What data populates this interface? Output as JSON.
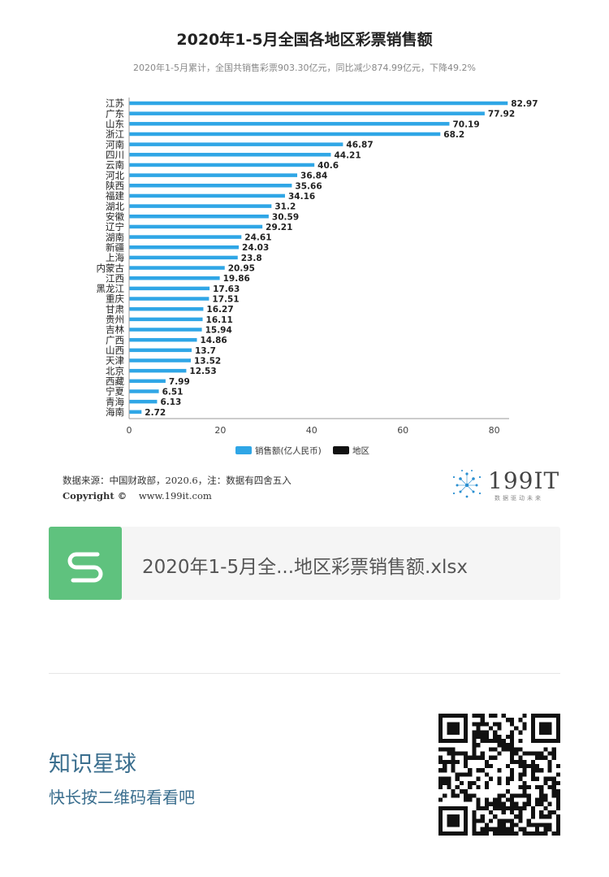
{
  "chart_data": {
    "type": "bar",
    "orientation": "horizontal",
    "title": "2020年1-5月全国各地区彩票销售额",
    "subtitle": "2020年1-5月累计，全国共销售彩票903.30亿元，同比减少874.99亿元，下降49.2%",
    "categories": [
      "江苏",
      "广东",
      "山东",
      "浙江",
      "河南",
      "四川",
      "云南",
      "河北",
      "陕西",
      "福建",
      "湖北",
      "安徽",
      "辽宁",
      "湖南",
      "新疆",
      "上海",
      "内蒙古",
      "江西",
      "黑龙江",
      "重庆",
      "甘肃",
      "贵州",
      "吉林",
      "广西",
      "山西",
      "天津",
      "北京",
      "西藏",
      "宁夏",
      "青海",
      "海南"
    ],
    "series": [
      {
        "name": "销售额(亿人民币)",
        "color": "#2fa6e6",
        "values": [
          82.97,
          77.92,
          70.19,
          68.2,
          46.87,
          44.21,
          40.6,
          36.84,
          35.66,
          34.16,
          31.2,
          30.59,
          29.21,
          24.61,
          24.03,
          23.8,
          20.95,
          19.86,
          17.63,
          17.51,
          16.27,
          16.11,
          15.94,
          14.86,
          13.7,
          13.52,
          12.53,
          7.99,
          6.51,
          6.13,
          2.72
        ]
      }
    ],
    "legend": [
      {
        "name": "销售额(亿人民币)",
        "color": "#2fa6e6"
      },
      {
        "name": "地区",
        "color": "#111111"
      }
    ],
    "xlim": [
      0,
      83
    ],
    "xticks": [
      "0",
      "20",
      "40",
      "60",
      "80"
    ],
    "xtick_values": [
      0,
      20,
      40,
      60,
      80
    ],
    "legend_position": "bottom-center"
  },
  "footer": {
    "source": "数据来源：中国财政部，2020.6，注：数据有四舍五入",
    "copyright_label": "Copyright ©",
    "copyright_site": "www.199it.com",
    "logo_text": "199IT",
    "logo_slogan": "数据驱动未来"
  },
  "file": {
    "icon_letter": "S",
    "name": "2020年1-5月全...地区彩票销售额.xlsx"
  },
  "planet": {
    "title": "知识星球",
    "subtitle": "快长按二维码看看吧"
  }
}
